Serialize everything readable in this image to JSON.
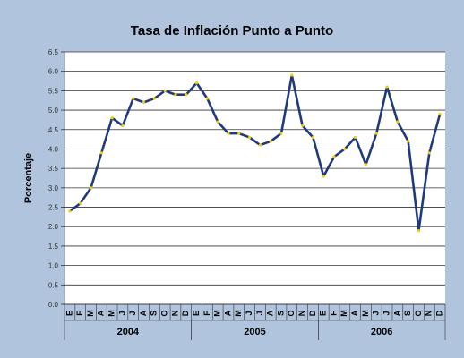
{
  "chart_data": {
    "type": "line",
    "title": "Tasa de Inflación Punto a Punto",
    "ylabel": "Porcentaje",
    "xlabel": "",
    "ylim": [
      0,
      6.5
    ],
    "yticks": [
      "0.0",
      "0.5",
      "1.0",
      "1.5",
      "2.0",
      "2.5",
      "3.0",
      "3.5",
      "4.0",
      "4.5",
      "5.0",
      "5.5",
      "6.0",
      "6.5"
    ],
    "grid": true,
    "line_color": "#1f3a7a",
    "marker_color": "#f0d000",
    "plot_background": "#ffffff",
    "categories": [
      "E",
      "F",
      "M",
      "A",
      "M",
      "J",
      "J",
      "A",
      "S",
      "O",
      "N",
      "D",
      "E",
      "F",
      "M",
      "A",
      "M",
      "J",
      "J",
      "A",
      "S",
      "O",
      "N",
      "D",
      "E",
      "F",
      "M",
      "A",
      "M",
      "J",
      "J",
      "A",
      "S",
      "O",
      "N",
      "D"
    ],
    "groups": [
      {
        "label": "2004",
        "start": 0,
        "end": 11
      },
      {
        "label": "2005",
        "start": 12,
        "end": 23
      },
      {
        "label": "2006",
        "start": 24,
        "end": 35
      }
    ],
    "series": [
      {
        "values": [
          2.4,
          2.6,
          3.0,
          3.9,
          4.8,
          4.6,
          5.3,
          5.2,
          5.3,
          5.5,
          5.4,
          5.4,
          5.7,
          5.3,
          4.7,
          4.4,
          4.4,
          4.3,
          4.1,
          4.2,
          4.4,
          5.9,
          4.6,
          4.3,
          3.3,
          3.8,
          4.0,
          4.3,
          3.6,
          4.4,
          5.6,
          4.7,
          4.2,
          1.9,
          3.9,
          4.9
        ]
      }
    ]
  }
}
